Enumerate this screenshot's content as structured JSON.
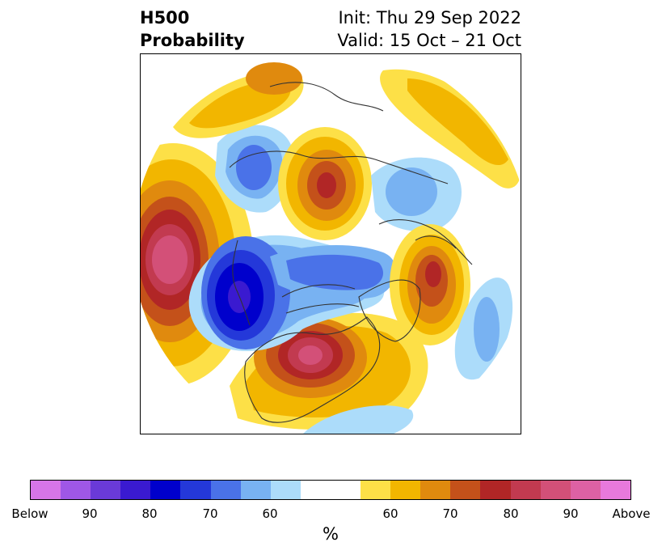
{
  "title": {
    "left_line1": "H500",
    "left_line2": "Probability",
    "right_line1": "Init: Thu 29 Sep 2022",
    "right_line2": "Valid: 15 Oct – 21 Oct"
  },
  "colorbar": {
    "colors": [
      "#d675e8",
      "#9f57e6",
      "#6a3ad8",
      "#3a1ad0",
      "#0000cc",
      "#2438d9",
      "#4a72e8",
      "#78b2f2",
      "#acdcfa",
      "#ffffff",
      "#ffffff",
      "#fde047",
      "#f2b600",
      "#e08a0e",
      "#c4511a",
      "#b12626",
      "#c23a50",
      "#d35078",
      "#dd61a4",
      "#e879dc"
    ],
    "tick_labels": [
      "Below",
      "90",
      "80",
      "70",
      "60",
      "60",
      "70",
      "80",
      "90",
      "Above"
    ],
    "unit_label": "%"
  },
  "map": {
    "projection": "north-polar-stereographic",
    "anomaly_centers": [
      {
        "sign": "below",
        "level": "80",
        "region": "north-pacific-east-of-japan"
      },
      {
        "sign": "below",
        "level": "70",
        "region": "canadian-arctic-archipelago"
      },
      {
        "sign": "below",
        "level": "60",
        "region": "east-siberia"
      },
      {
        "sign": "below",
        "level": "60",
        "region": "scandinavia-northwest-russia"
      },
      {
        "sign": "below",
        "level": "60",
        "region": "east-atlantic"
      },
      {
        "sign": "above",
        "level": "Above",
        "region": "eastern-united-states"
      },
      {
        "sign": "above",
        "level": "Above",
        "region": "bering-sea"
      },
      {
        "sign": "above",
        "level": "80",
        "region": "siberia-central"
      },
      {
        "sign": "above",
        "level": "80",
        "region": "greenland"
      },
      {
        "sign": "above",
        "level": "60",
        "region": "middle-east"
      }
    ]
  }
}
